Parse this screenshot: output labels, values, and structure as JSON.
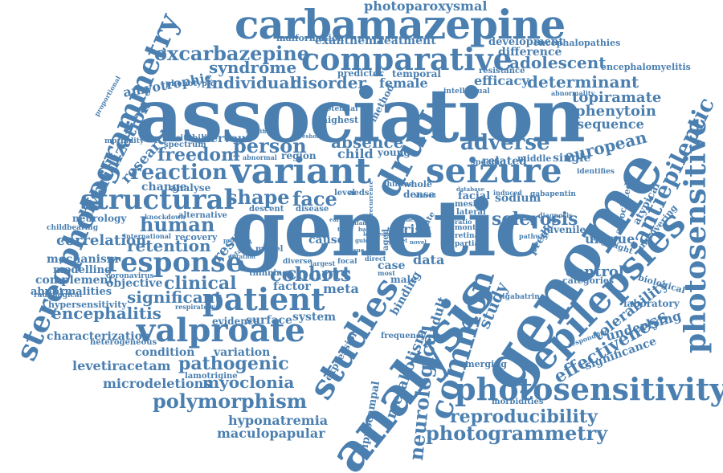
{
  "cloud": {
    "color": "#4a7fb0",
    "words": [
      "association",
      "genetic",
      "genome",
      "carbamazepine",
      "comparative",
      "analysis",
      "epilepsies",
      "variant",
      "seizure",
      "stereophotogrammetry",
      "photosensitive",
      "photosensitivity",
      "valproate",
      "studies",
      "common",
      "structural",
      "response",
      "patient",
      "drug",
      "photoparoxysmal",
      "oxcarbazepine",
      "syndrome",
      "individual",
      "disorder",
      "adolescent",
      "determinant",
      "efficacy",
      "female",
      "amyotrophic",
      "hybridization",
      "research",
      "freedom",
      "reaction",
      "shape",
      "face",
      "absence",
      "person",
      "adverse",
      "antiepileptic",
      "european",
      "topiramate",
      "phenytoin",
      "sequence",
      "human",
      "correlation",
      "retention",
      "clinical",
      "cohorts",
      "significant",
      "encephalitis",
      "pathogenic",
      "myoclonia",
      "polymorphism",
      "hyponatremia",
      "maculopapular",
      "reproducibility",
      "photogrammetry",
      "effectiveness",
      "tolerability",
      "sclerosis",
      "levetiracetam",
      "microdeletions",
      "characterization",
      "neurological",
      "metabolism",
      "adult",
      "study",
      "mechanism",
      "modelling",
      "complement",
      "abnormalities",
      "hypersensitivity",
      "objective",
      "condition",
      "variation",
      "evidence",
      "surface",
      "system",
      "cohort",
      "meta",
      "factor",
      "result",
      "control",
      "unique",
      "underlying",
      "significance",
      "laboratory",
      "biological",
      "atypical",
      "associated",
      "uncovering",
      "highlight",
      "malformation",
      "exanthema",
      "treatment",
      "development",
      "encephalopathies",
      "difference",
      "encephalomyelitis",
      "predictor",
      "temporal",
      "resistance",
      "abnormality",
      "intellectual",
      "method",
      "highest",
      "potential",
      "phenotypic",
      "excitability",
      "nervous",
      "morbidity",
      "spectrum",
      "abnormal",
      "region",
      "child",
      "young",
      "related",
      "middle",
      "single",
      "identifies",
      "change",
      "analyse",
      "whole",
      "dense",
      "facial",
      "database",
      "induced",
      "sodium",
      "gabapentin",
      "neurology",
      "knockdown",
      "alternative",
      "childbearing",
      "radiological",
      "international",
      "recovery",
      "probable",
      "detailed",
      "model",
      "largest",
      "focal",
      "case",
      "most",
      "data",
      "risk",
      "cause",
      "diverse",
      "thinning",
      "duration",
      "coronavirus",
      "respiratory",
      "heterogeneous",
      "lamotrigine",
      "expression",
      "frequency",
      "binding",
      "male",
      "emerging",
      "vigabatrin",
      "morbidities",
      "hippocampal",
      "responding",
      "categories",
      "juvenile",
      "pathway",
      "predict",
      "diagnosis",
      "retinal",
      "partial",
      "month",
      "mesial",
      "lateral",
      "specific",
      "ratio",
      "level",
      "aeds",
      "descent",
      "disease",
      "chinese",
      "rate",
      "proportional",
      "recurrence",
      "specificity",
      "threshold",
      "shared",
      "aged",
      "direct",
      "lower",
      "onset",
      "trial",
      "design",
      "guide",
      "infant",
      "novel",
      "tissue",
      "type",
      "genes",
      "based",
      "early",
      "fine",
      "brain"
    ]
  }
}
